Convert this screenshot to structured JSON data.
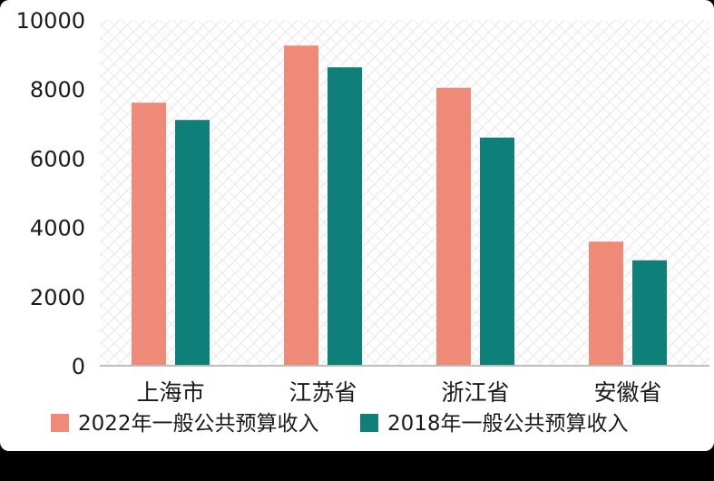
{
  "chart_data": {
    "type": "bar",
    "categories": [
      "上海市",
      "江苏省",
      "浙江省",
      "安徽省"
    ],
    "series": [
      {
        "name": "2022年一般公共预算收入",
        "values": [
          7608,
          9259,
          8039,
          3589
        ]
      },
      {
        "name": "2018年一般公共预算收入",
        "values": [
          7108,
          8630,
          6598,
          3049
        ]
      }
    ],
    "yticks": [
      0,
      2000,
      4000,
      6000,
      8000,
      10000
    ],
    "ylim": [
      0,
      10000
    ],
    "colors": [
      "#f08a78",
      "#0f7f7a"
    ],
    "grid": false,
    "plot_background": "diagonal-hatch",
    "legend_position": "bottom"
  }
}
